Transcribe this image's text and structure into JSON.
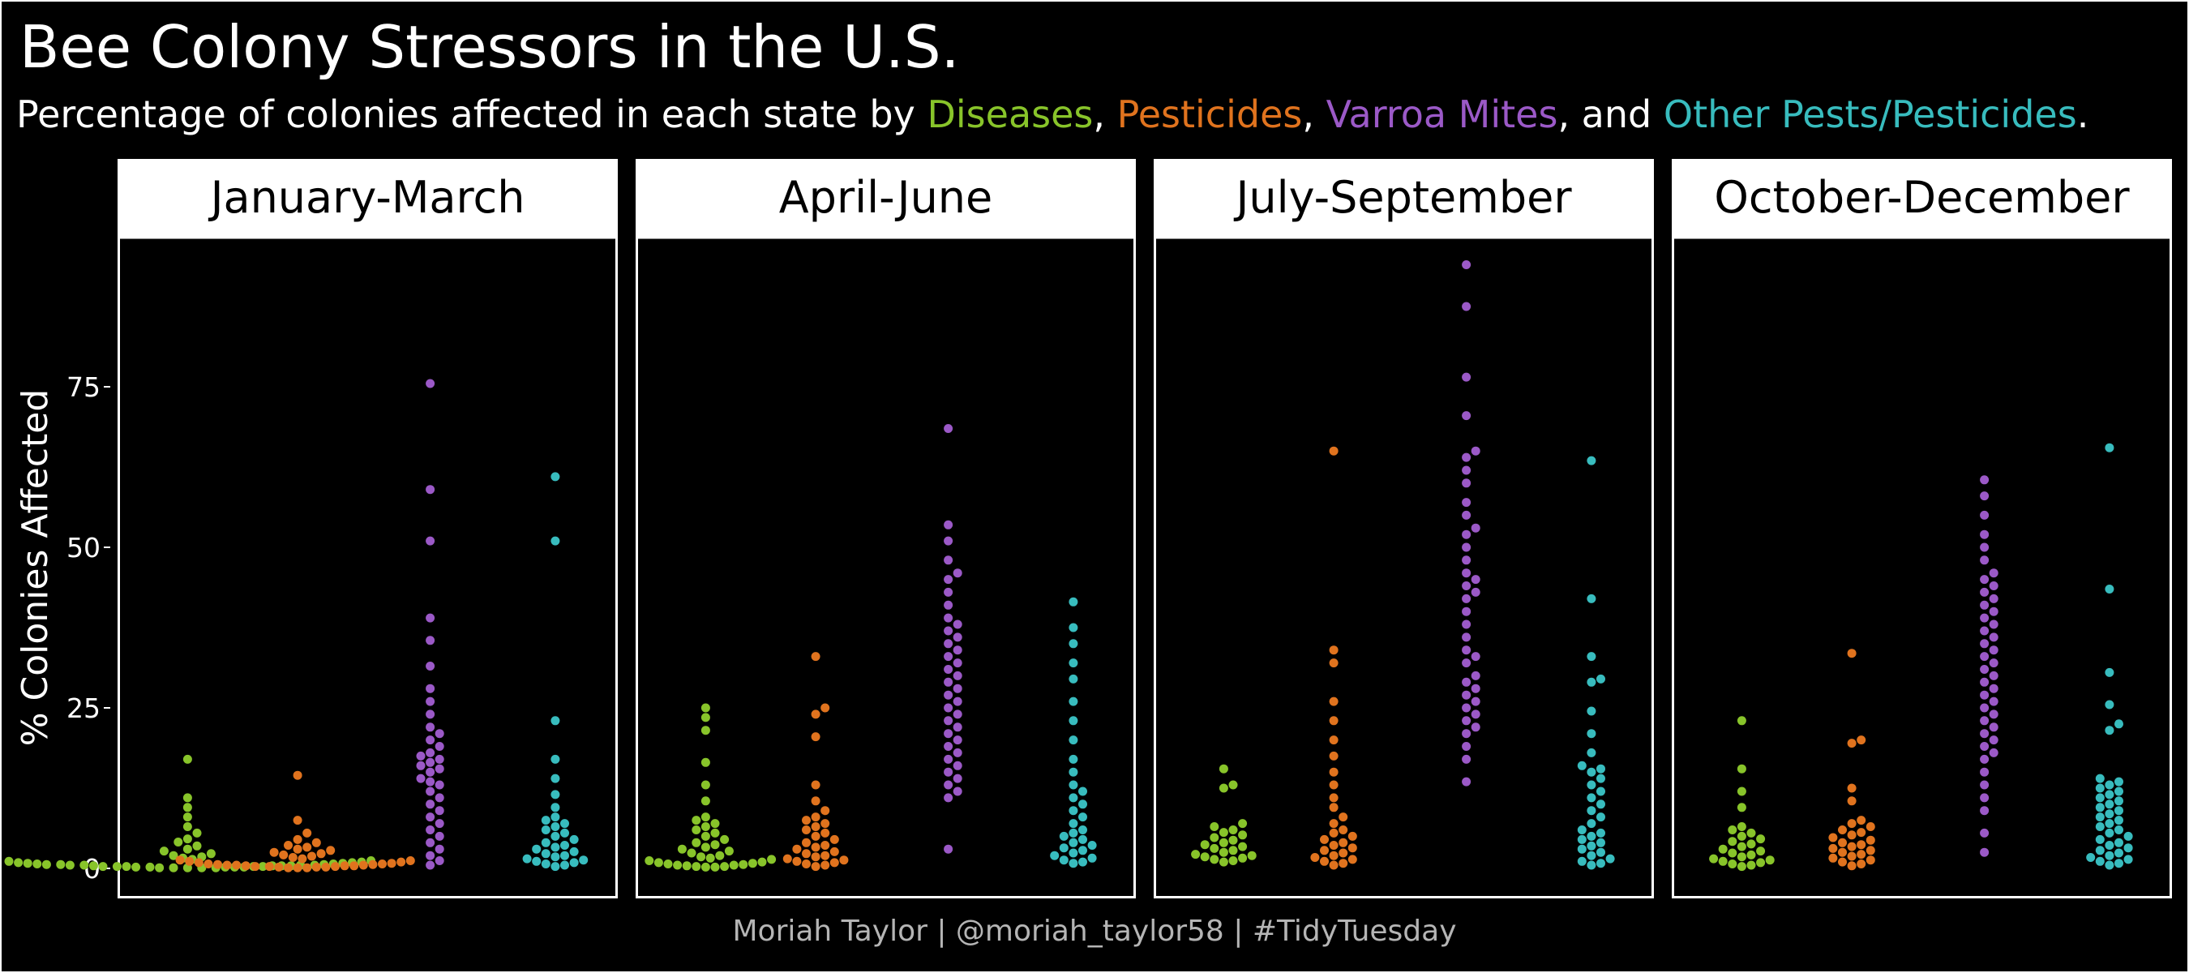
{
  "title": "Bee Colony Stressors in the U.S.",
  "subtitle": {
    "prefix": "Percentage of colonies affected in each state by ",
    "series1": "Diseases",
    "sep1": ", ",
    "series2": "Pesticides",
    "sep2": ", ",
    "series3": "Varroa Mites",
    "sep3": ", and ",
    "series4": "Other Pests/Pesticides",
    "suffix": "."
  },
  "caption": "Moriah Taylor | @moriah_taylor58 | #TidyTuesday",
  "colors": {
    "background": "#000000",
    "panel_border": "#ffffff",
    "strip_fill": "#ffffff",
    "strip_text": "#000000",
    "Diseases": "#88c42a",
    "Pesticides": "#e0731e",
    "Varroa Mites": "#9b59c7",
    "Other Pests/Pesticides": "#38bcbe"
  },
  "chart_data": {
    "type": "scatter",
    "subtype": "beeswarm, faceted by quarter",
    "ylabel": "% Colonies Affected",
    "xlabel": "",
    "ylim": [
      0,
      97
    ],
    "yticks": [
      0,
      25,
      50,
      75
    ],
    "grid": false,
    "legend": "none (series named in subtitle)",
    "series_order": [
      "Diseases",
      "Pesticides",
      "Varroa Mites",
      "Other Pests/Pesticides"
    ],
    "panels": [
      {
        "label": "January-March",
        "series": [
          {
            "name": "Diseases",
            "values": [
              0.1,
              0.1,
              0.1,
              0.1,
              0.1,
              0.2,
              0.2,
              0.2,
              0.2,
              0.2,
              0.3,
              0.3,
              0.3,
              0.3,
              0.3,
              0.4,
              0.4,
              0.4,
              0.4,
              0.5,
              0.5,
              0.5,
              0.5,
              0.6,
              0.6,
              0.6,
              0.7,
              0.7,
              0.8,
              0.8,
              0.9,
              0.9,
              1.0,
              1.1,
              1.2,
              1.4,
              1.6,
              1.8,
              2.0,
              2.3,
              2.7,
              3.0,
              3.5,
              4.1,
              4.6,
              5.5,
              6.5,
              8.0,
              9.5,
              11.0,
              17.0
            ]
          },
          {
            "name": "Pesticides",
            "values": [
              0.1,
              0.1,
              0.1,
              0.2,
              0.2,
              0.2,
              0.3,
              0.3,
              0.3,
              0.4,
              0.4,
              0.4,
              0.5,
              0.5,
              0.5,
              0.6,
              0.6,
              0.7,
              0.7,
              0.8,
              0.9,
              1.0,
              1.1,
              1.2,
              1.3,
              1.5,
              1.7,
              1.9,
              2.1,
              2.3,
              2.5,
              2.8,
              3.0,
              3.3,
              3.6,
              4.0,
              4.5,
              5.5,
              7.5,
              14.5
            ]
          },
          {
            "name": "Varroa Mites",
            "values": [
              0.5,
              1.2,
              2.0,
              3.0,
              4.0,
              5.0,
              6.0,
              7.0,
              8.0,
              9.0,
              10.0,
              11.0,
              12.0,
              13.0,
              13.5,
              14.0,
              15.0,
              15.5,
              16.0,
              16.5,
              17.0,
              17.5,
              18.0,
              19.0,
              20.0,
              21.0,
              22.0,
              24.0,
              26.0,
              28.0,
              31.5,
              35.5,
              39.0,
              51.0,
              59.0,
              75.5
            ]
          },
          {
            "name": "Other Pests/Pesticides",
            "values": [
              0.3,
              0.5,
              0.7,
              0.9,
              1.1,
              1.3,
              1.5,
              1.8,
              2.0,
              2.3,
              2.6,
              3.0,
              3.3,
              3.6,
              4.0,
              4.5,
              5.0,
              5.5,
              6.0,
              6.5,
              7.0,
              7.5,
              8.0,
              9.5,
              11.5,
              14.0,
              17.0,
              23.0,
              51.0,
              61.0
            ]
          }
        ]
      },
      {
        "label": "April-June",
        "series": [
          {
            "name": "Diseases",
            "values": [
              0.2,
              0.2,
              0.3,
              0.3,
              0.4,
              0.5,
              0.5,
              0.6,
              0.7,
              0.8,
              0.9,
              1.0,
              1.2,
              1.4,
              1.6,
              1.8,
              2.0,
              2.4,
              2.7,
              3.0,
              3.3,
              3.7,
              4.0,
              4.5,
              5.0,
              5.5,
              6.0,
              6.5,
              7.0,
              7.5,
              8.0,
              10.5,
              13.0,
              16.5,
              21.5,
              23.5,
              25.0
            ]
          },
          {
            "name": "Pesticides",
            "values": [
              0.3,
              0.5,
              0.7,
              0.9,
              1.1,
              1.3,
              1.5,
              1.8,
              2.0,
              2.3,
              2.6,
              3.0,
              3.3,
              3.6,
              4.0,
              4.5,
              5.0,
              5.5,
              6.0,
              6.5,
              7.0,
              7.5,
              8.0,
              9.0,
              10.5,
              13.0,
              20.5,
              24.0,
              25.0,
              33.0
            ]
          },
          {
            "name": "Varroa Mites",
            "values": [
              3.0,
              11.0,
              12.0,
              13.0,
              14.0,
              15.0,
              16.0,
              17.0,
              18.0,
              19.0,
              20.0,
              21.0,
              22.0,
              23.0,
              24.0,
              25.0,
              26.0,
              27.0,
              28.0,
              29.0,
              30.0,
              31.0,
              32.0,
              33.0,
              34.0,
              35.0,
              36.0,
              37.0,
              38.0,
              39.0,
              41.0,
              43.0,
              45.0,
              46.0,
              48.0,
              51.0,
              53.5,
              68.5
            ]
          },
          {
            "name": "Other Pests/Pesticides",
            "values": [
              0.8,
              1.0,
              1.3,
              1.6,
              2.0,
              2.4,
              2.8,
              3.2,
              3.6,
              4.0,
              4.5,
              5.0,
              5.5,
              6.0,
              7.0,
              8.0,
              9.0,
              10.0,
              11.0,
              12.0,
              13.0,
              15.0,
              17.0,
              20.0,
              23.0,
              26.0,
              29.5,
              32.0,
              35.0,
              37.5,
              41.5
            ]
          }
        ]
      },
      {
        "label": "July-September",
        "series": [
          {
            "name": "Diseases",
            "values": [
              1.0,
              1.2,
              1.4,
              1.6,
              1.8,
              2.0,
              2.2,
              2.5,
              2.8,
              3.1,
              3.4,
              3.7,
              4.0,
              4.4,
              4.8,
              5.2,
              5.6,
              6.0,
              6.5,
              7.0,
              12.5,
              13.0,
              15.5
            ]
          },
          {
            "name": "Pesticides",
            "values": [
              0.5,
              0.8,
              1.1,
              1.4,
              1.7,
              2.0,
              2.4,
              2.8,
              3.2,
              3.6,
              4.0,
              4.5,
              5.0,
              5.5,
              6.0,
              7.0,
              8.0,
              9.5,
              11.0,
              13.0,
              15.0,
              17.5,
              20.0,
              23.0,
              26.0,
              32.0,
              34.0,
              65.0
            ]
          },
          {
            "name": "Varroa Mites",
            "values": [
              13.5,
              17.0,
              19.0,
              21.0,
              22.0,
              23.0,
              24.0,
              25.0,
              26.0,
              27.0,
              28.0,
              29.0,
              30.0,
              32.0,
              33.0,
              34.0,
              36.0,
              38.0,
              40.0,
              42.0,
              43.0,
              44.0,
              45.0,
              46.0,
              48.0,
              50.0,
              52.0,
              53.0,
              55.0,
              57.0,
              60.0,
              62.0,
              64.0,
              65.0,
              70.5,
              76.5,
              87.5,
              94.0
            ]
          },
          {
            "name": "Other Pests/Pesticides",
            "values": [
              0.5,
              0.8,
              1.1,
              1.5,
              2.0,
              2.5,
              3.0,
              3.5,
              4.0,
              4.5,
              5.0,
              5.5,
              6.0,
              7.0,
              8.0,
              9.0,
              10.0,
              11.0,
              12.0,
              13.0,
              14.0,
              15.0,
              15.5,
              16.0,
              18.0,
              21.0,
              24.5,
              29.0,
              29.5,
              33.0,
              42.0,
              63.5
            ]
          }
        ]
      },
      {
        "label": "October-December",
        "series": [
          {
            "name": "Diseases",
            "values": [
              0.3,
              0.5,
              0.7,
              0.9,
              1.1,
              1.3,
              1.5,
              1.8,
              2.1,
              2.4,
              2.7,
              3.0,
              3.4,
              3.8,
              4.2,
              4.6,
              5.0,
              5.5,
              6.0,
              6.5,
              9.5,
              12.0,
              15.5,
              23.0
            ]
          },
          {
            "name": "Pesticides",
            "values": [
              0.4,
              0.7,
              1.0,
              1.3,
              1.6,
              1.9,
              2.2,
              2.5,
              2.8,
              3.1,
              3.4,
              3.7,
              4.0,
              4.4,
              4.8,
              5.2,
              5.6,
              6.0,
              6.5,
              7.0,
              7.5,
              10.5,
              12.5,
              19.5,
              20.0,
              33.5
            ]
          },
          {
            "name": "Varroa Mites",
            "values": [
              2.5,
              5.5,
              9.0,
              11.0,
              13.0,
              15.0,
              17.0,
              18.0,
              19.0,
              20.0,
              21.0,
              22.0,
              23.0,
              24.0,
              25.0,
              26.0,
              27.0,
              28.0,
              29.0,
              30.0,
              31.0,
              32.0,
              33.0,
              34.0,
              35.0,
              36.0,
              37.0,
              38.0,
              39.0,
              40.0,
              41.0,
              42.0,
              43.0,
              44.0,
              45.0,
              46.0,
              48.0,
              50.0,
              52.0,
              55.0,
              58.0,
              60.5
            ]
          },
          {
            "name": "Other Pests/Pesticides",
            "values": [
              0.5,
              0.8,
              1.1,
              1.4,
              1.7,
              2.0,
              2.4,
              2.8,
              3.2,
              3.6,
              4.0,
              4.5,
              5.0,
              5.5,
              6.0,
              6.5,
              7.0,
              7.5,
              8.0,
              8.5,
              9.0,
              9.5,
              10.0,
              10.5,
              11.0,
              11.5,
              12.0,
              12.5,
              13.0,
              13.5,
              14.0,
              21.5,
              22.5,
              25.5,
              30.5,
              43.5,
              65.5
            ]
          }
        ]
      }
    ]
  }
}
